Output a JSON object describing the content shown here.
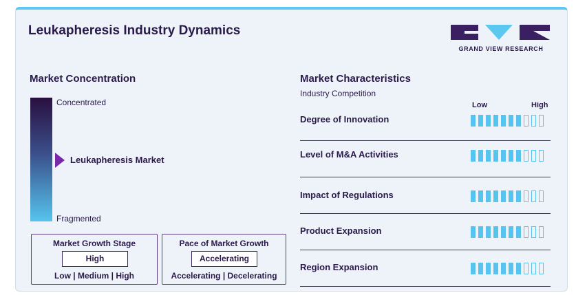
{
  "title": "Leukapheresis Industry Dynamics",
  "logo": {
    "text": "GRAND VIEW RESEARCH",
    "colors": {
      "dark": "#3a2060",
      "accent": "#5cc8f0"
    }
  },
  "concentration": {
    "heading": "Market Concentration",
    "top_label": "Concentrated",
    "bottom_label": "Fragmented",
    "market_label": "Leukapheresis Market",
    "pointer_color": "#7a2aa8"
  },
  "growth_stage": {
    "title": "Market Growth Stage",
    "value": "High",
    "options": "Low | Medium | High"
  },
  "growth_pace": {
    "title": "Pace of Market Growth",
    "value": "Accelerating",
    "options": "Accelerating | Decelerating"
  },
  "characteristics": {
    "heading": "Market Characteristics",
    "subheading": "Industry Competition",
    "scale_low": "Low",
    "scale_high": "High",
    "segments_total": 10,
    "rows": [
      {
        "label": "Degree of Innovation",
        "filled": 7
      },
      {
        "label": "Level of M&A Activities",
        "filled": 7
      },
      {
        "label": "Impact of Regulations",
        "filled": 7
      },
      {
        "label": "Product Expansion",
        "filled": 7
      },
      {
        "label": "Region Expansion",
        "filled": 7
      }
    ]
  }
}
